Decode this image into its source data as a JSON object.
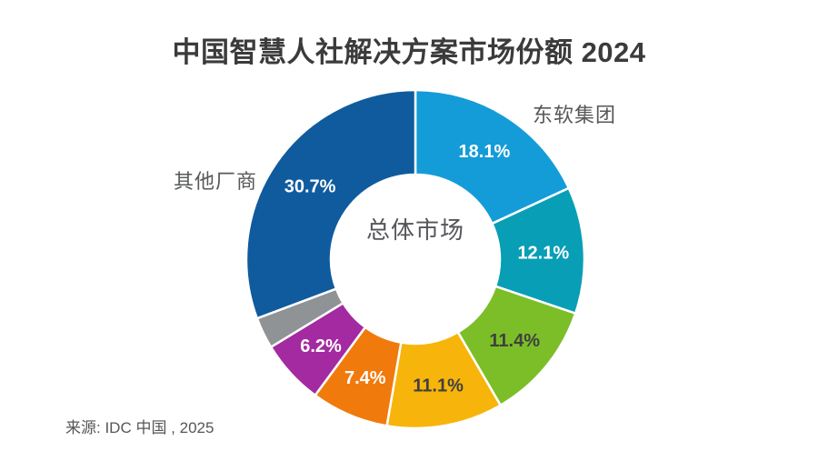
{
  "page": {
    "background": "#FFFFFF"
  },
  "chart_data": {
    "type": "pie",
    "subtype": "donut",
    "title": "中国智慧人社解决方案市场份额 2024",
    "center_label": "总体市场",
    "source": "来源: IDC 中国 , 2025",
    "direction": "clockwise",
    "start_angle_deg": 0,
    "inner_radius_ratio": 0.5,
    "legend": "none",
    "segments": [
      {
        "label": "18.1%",
        "value": 18.1,
        "color": "#149CD8",
        "label_color": "#FFFFFF",
        "callout": "东软集团"
      },
      {
        "label": "12.1%",
        "value": 12.1,
        "color": "#089EB6",
        "label_color": "#FFFFFF"
      },
      {
        "label": "11.4%",
        "value": 11.4,
        "color": "#7CBE28",
        "label_color": "#3F4040"
      },
      {
        "label": "11.1%",
        "value": 11.1,
        "color": "#F7B50B",
        "label_color": "#3F4040"
      },
      {
        "label": "7.4%",
        "value": 7.4,
        "color": "#F17A0D",
        "label_color": "#FFFFFF"
      },
      {
        "label": "6.2%",
        "value": 6.2,
        "color": "#A32AA0",
        "label_color": "#FFFFFF"
      },
      {
        "label": "",
        "value": 3.0,
        "color": "#909396",
        "label_color": "#FFFFFF"
      },
      {
        "label": "30.7%",
        "value": 30.7,
        "color": "#0F5B9E",
        "label_color": "#FFFFFF",
        "callout": "其他厂商"
      }
    ]
  }
}
